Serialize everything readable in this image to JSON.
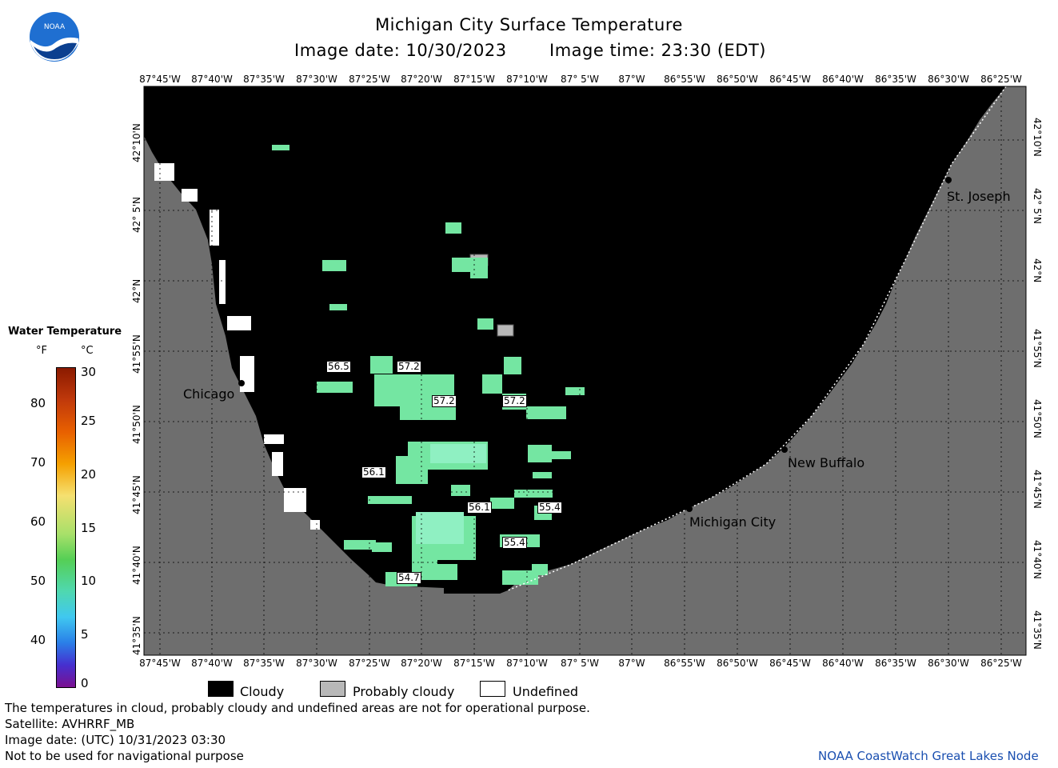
{
  "header": {
    "title": "Michigan City Surface Temperature",
    "image_date": "Image date: 10/30/2023",
    "image_time": "Image time: 23:30 (EDT)"
  },
  "logo": {
    "text": "NOAA"
  },
  "lon_ticks": [
    "87°45'W",
    "87°40'W",
    "87°35'W",
    "87°30'W",
    "87°25'W",
    "87°20'W",
    "87°15'W",
    "87°10'W",
    "87° 5'W",
    "87°W",
    "86°55'W",
    "86°50'W",
    "86°45'W",
    "86°40'W",
    "86°35'W",
    "86°30'W",
    "86°25'W"
  ],
  "lat_ticks": [
    "42°10'N",
    "42° 5'N",
    "42°N",
    "41°55'N",
    "41°50'N",
    "41°45'N",
    "41°40'N",
    "41°35'N"
  ],
  "cities": [
    {
      "name": "Chicago"
    },
    {
      "name": "St. Joseph"
    },
    {
      "name": "New Buffalo"
    },
    {
      "name": "Michigan City"
    }
  ],
  "temp_labels": [
    "56.5",
    "57.2",
    "57.2",
    "57.2",
    "56.1",
    "56.1",
    "55.4",
    "55.4",
    "54.7"
  ],
  "legend": {
    "title": "Water Temperature",
    "unit_f": "°F",
    "unit_c": "°C",
    "f_values": [
      "80",
      "70",
      "60",
      "50",
      "40"
    ],
    "c_values": [
      "30",
      "25",
      "20",
      "15",
      "10",
      "5",
      "0"
    ]
  },
  "categories": [
    {
      "label": "Cloudy",
      "color": "#000000"
    },
    {
      "label": "Probably cloudy",
      "color": "#b8b8b8"
    },
    {
      "label": "Undefined",
      "color": "#ffffff"
    }
  ],
  "footer": {
    "note": "The temperatures in cloud, probably cloudy and undefined areas are not for operational purpose.",
    "satellite": "Satellite: AVHRRF_MB",
    "utc_date": "Image date: (UTC) 10/31/2023  03:30",
    "nav": "Not to be used for navigational purpose",
    "credit": "NOAA CoastWatch Great Lakes Node"
  },
  "colors": {
    "land": "#6e6e6e",
    "cloud": "#000000",
    "water_green": "#74e6a2",
    "water_mint": "#86efb9",
    "credit": "#1a4fb0"
  }
}
